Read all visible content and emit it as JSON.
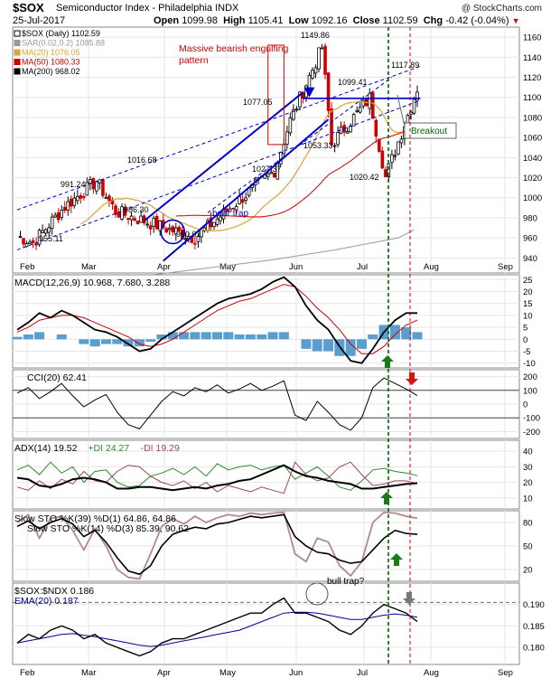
{
  "header": {
    "symbol": "$SOX",
    "name": "Semiconductor Index - Philadelphia",
    "exchange": "INDX",
    "date": "25-Jul-2017",
    "open_label": "Open",
    "open": "1099.98",
    "high_label": "High",
    "high": "1105.41",
    "low_label": "Low",
    "low": "1092.16",
    "close_label": "Close",
    "close": "1102.59",
    "chg_label": "Chg",
    "chg": "-0.42 (-0.04%)",
    "chg_arrow": "▼",
    "logo": "@ StockCharts.com"
  },
  "colors": {
    "up": "#000000",
    "down": "#cc0000",
    "trend": "#0000cc",
    "ma20": "#d9a43a",
    "ma50": "#cc0000",
    "ma200": "#999999",
    "green_line": "#006600",
    "red_line": "#cc0000",
    "grid": "#e6e6e6",
    "macd_hist": "#3c8dc5",
    "cci_fill_pos": "#5b7a4c",
    "cci_fill_neg": "#8a5a4e"
  },
  "price_panel": {
    "legend": [
      {
        "label": "$SOX (Daily) 1102.59",
        "color": "#000000"
      },
      {
        "label": "SAR(0.02,0.2) 1085.88",
        "color": "#999999"
      },
      {
        "label": "MA(20) 1076.05",
        "color": "#d9a43a"
      },
      {
        "label": "MA(50) 1080.33",
        "color": "#cc0000"
      },
      {
        "label": "MA(200) 968.02",
        "color": "#000000"
      }
    ],
    "annotations": [
      {
        "text": "Massive bearish engulfing",
        "color": "#cc0000"
      },
      {
        "text": "pattern",
        "color": "#cc0000"
      },
      {
        "text": "bear trap",
        "color": "#0000cc"
      },
      {
        "text": "Breakout",
        "color": "#006600"
      }
    ],
    "price_labels": [
      "1149.86",
      "1117.89",
      "1099.41",
      "1077.05",
      "1053.33",
      "1027.37",
      "1020.42",
      "1016.68",
      "991.24",
      "986.30",
      "955.11",
      "960.01"
    ]
  },
  "chart_data": [
    {
      "type": "candlestick",
      "title": "$SOX Semiconductor Index - Philadelphia INDX",
      "x_ticks": [
        "Feb",
        "Mar",
        "Apr",
        "May",
        "Jun",
        "Jul",
        "Aug",
        "Sep"
      ],
      "y_ticks": [
        940,
        960,
        980,
        1000,
        1020,
        1040,
        1060,
        1080,
        1100,
        1120,
        1140,
        1160
      ],
      "ylim": [
        925,
        1170
      ],
      "key_points": [
        {
          "date": "2017-01-31",
          "value": 955.11
        },
        {
          "date": "2017-02-14",
          "value": 991.24
        },
        {
          "date": "2017-02-28",
          "value": 1016.68
        },
        {
          "date": "2017-03-09",
          "value": 986.3
        },
        {
          "date": "2017-04-13",
          "value": 960.01
        },
        {
          "date": "2017-05-18",
          "value": 1027.37
        },
        {
          "date": "2017-05-24",
          "value": 1077.05
        },
        {
          "date": "2017-06-08",
          "value": 1149.86
        },
        {
          "date": "2017-06-12",
          "value": 1053.33
        },
        {
          "date": "2017-06-29",
          "value": 1099.41
        },
        {
          "date": "2017-07-06",
          "value": 1020.42
        },
        {
          "date": "2017-07-21",
          "value": 1117.89
        },
        {
          "date": "2017-07-25",
          "value": 1102.59
        }
      ],
      "ma200": [
        [
          0,
          908
        ],
        [
          40,
          922
        ],
        [
          80,
          938
        ],
        [
          100,
          948
        ],
        [
          120,
          960
        ],
        [
          125,
          968
        ]
      ]
    },
    {
      "type": "line",
      "title": "MACD(12,26,9) 10.968, 7.680, 3.288",
      "y_ticks": [
        25,
        20,
        15,
        10,
        5,
        0,
        -5,
        -10
      ],
      "ylim": [
        -12,
        27
      ],
      "series": [
        {
          "name": "MACD",
          "color": "#000000",
          "values": [
            4,
            7,
            11,
            9,
            12,
            10,
            7,
            4,
            3,
            1,
            -2,
            -5,
            -4,
            0,
            3,
            6,
            9,
            12,
            15,
            17,
            18,
            19,
            21,
            24,
            26,
            22,
            14,
            8,
            4,
            -3,
            -9,
            -10,
            -4,
            3,
            8,
            11,
            11
          ]
        },
        {
          "name": "Signal",
          "color": "#cc0000",
          "values": [
            3,
            5,
            8,
            9,
            10,
            10,
            9,
            7,
            5,
            3,
            1,
            -2,
            -3,
            -2,
            0,
            3,
            6,
            9,
            12,
            14,
            16,
            17,
            19,
            21,
            23,
            22,
            18,
            13,
            9,
            4,
            -2,
            -6,
            -6,
            -3,
            2,
            6,
            8
          ]
        },
        {
          "name": "Histogram",
          "color": "#3c8dc5",
          "values": [
            1,
            2,
            3,
            0,
            2,
            0,
            -2,
            -3,
            -2,
            -2,
            -3,
            -3,
            -1,
            2,
            3,
            3,
            3,
            3,
            3,
            3,
            2,
            2,
            2,
            3,
            3,
            0,
            -4,
            -5,
            -5,
            -7,
            -7,
            -4,
            2,
            6,
            6,
            5,
            3
          ]
        }
      ]
    },
    {
      "type": "line",
      "title": "CCI(20) 62.41",
      "y_ticks": [
        200,
        100,
        0,
        -100,
        -200
      ],
      "ylim": [
        -250,
        250
      ],
      "series": [
        {
          "name": "CCI",
          "color": "#000000",
          "values": [
            80,
            120,
            40,
            90,
            150,
            60,
            -20,
            30,
            70,
            -60,
            -150,
            -180,
            -80,
            20,
            90,
            60,
            120,
            90,
            140,
            80,
            110,
            150,
            100,
            130,
            170,
            -80,
            -120,
            20,
            -60,
            -150,
            -190,
            -100,
            120,
            190,
            150,
            110,
            62
          ]
        }
      ]
    },
    {
      "type": "line",
      "title": "ADX(14) 19.52 +DI 24.27 -DI 19.29",
      "y_ticks": [
        40,
        30,
        20,
        10
      ],
      "ylim": [
        3,
        47
      ],
      "series": [
        {
          "name": "ADX",
          "color": "#000000",
          "values": [
            23,
            22,
            18,
            17,
            19,
            22,
            23,
            22,
            20,
            16,
            16,
            17,
            17,
            16,
            15,
            16,
            17,
            16,
            18,
            19,
            21,
            22,
            25,
            28,
            31,
            27,
            24,
            23,
            21,
            20,
            19,
            16,
            16,
            17,
            18,
            19,
            19.5
          ]
        },
        {
          "name": "+DI",
          "color": "#2c8b2c",
          "values": [
            28,
            31,
            25,
            33,
            26,
            30,
            20,
            27,
            28,
            20,
            17,
            18,
            24,
            26,
            29,
            25,
            30,
            24,
            32,
            28,
            30,
            31,
            28,
            30,
            31,
            22,
            26,
            30,
            24,
            17,
            15,
            21,
            28,
            29,
            27,
            26,
            24.3
          ]
        },
        {
          "name": "-DI",
          "color": "#a0455a",
          "values": [
            17,
            15,
            21,
            16,
            22,
            19,
            27,
            21,
            20,
            27,
            31,
            30,
            24,
            20,
            18,
            21,
            16,
            20,
            14,
            18,
            16,
            14,
            17,
            15,
            13,
            33,
            25,
            21,
            23,
            30,
            33,
            25,
            18,
            19,
            21,
            21,
            19.3
          ]
        }
      ]
    },
    {
      "type": "line",
      "title": "Slow STO %K(39) %D(1) 64.86, 64.86",
      "y_ticks": [
        80,
        50,
        20
      ],
      "ylim": [
        5,
        95
      ],
      "series": [
        {
          "name": "Slow STO %K(39)",
          "color": "#000000",
          "values": [
            75,
            82,
            72,
            80,
            85,
            78,
            62,
            70,
            55,
            35,
            18,
            14,
            25,
            50,
            65,
            70,
            74,
            72,
            78,
            80,
            84,
            88,
            86,
            88,
            90,
            62,
            50,
            42,
            40,
            32,
            28,
            30,
            45,
            60,
            70,
            66,
            64.86
          ]
        },
        {
          "name": "Slow STO %K(14) %D(3)",
          "color": "#b08a8a",
          "values": [
            80,
            90,
            60,
            85,
            88,
            70,
            45,
            72,
            50,
            20,
            10,
            8,
            40,
            75,
            85,
            78,
            88,
            80,
            86,
            90,
            88,
            92,
            90,
            92,
            93,
            40,
            30,
            60,
            55,
            25,
            12,
            30,
            80,
            93,
            92,
            88,
            85.39
          ]
        }
      ]
    },
    {
      "type": "line",
      "title": "$SOX:$NDX 0.186",
      "y_ticks": [
        0.19,
        0.185,
        0.18
      ],
      "ylim": [
        0.176,
        0.195
      ],
      "series": [
        {
          "name": "$SOX:$NDX",
          "color": "#000000",
          "values": [
            0.181,
            0.183,
            0.182,
            0.184,
            0.185,
            0.184,
            0.182,
            0.183,
            0.181,
            0.18,
            0.179,
            0.178,
            0.179,
            0.181,
            0.182,
            0.182,
            0.183,
            0.184,
            0.185,
            0.186,
            0.187,
            0.188,
            0.188,
            0.19,
            0.1915,
            0.188,
            0.188,
            0.187,
            0.186,
            0.184,
            0.183,
            0.185,
            0.188,
            0.19,
            0.189,
            0.188,
            0.186
          ]
        },
        {
          "name": "EMA(20) 0.187",
          "color": "#000099",
          "values": [
            0.181,
            0.1815,
            0.182,
            0.1825,
            0.183,
            0.1832,
            0.1828,
            0.1825,
            0.182,
            0.1815,
            0.181,
            0.1805,
            0.1802,
            0.1805,
            0.181,
            0.1815,
            0.182,
            0.1825,
            0.183,
            0.1835,
            0.184,
            0.185,
            0.186,
            0.187,
            0.188,
            0.1882,
            0.1882,
            0.188,
            0.1875,
            0.187,
            0.1865,
            0.1865,
            0.187,
            0.1875,
            0.1878,
            0.1875,
            0.187
          ]
        }
      ]
    }
  ],
  "panels": [
    {
      "id": "macd",
      "label": "MACD(12,26,9) 10.968, 7.680, 3.288"
    },
    {
      "id": "cci",
      "label": "CCI(20) 62.41"
    },
    {
      "id": "adx",
      "label_parts": [
        {
          "t": "ADX(14) 19.52",
          "c": "#000000"
        },
        {
          "t": "+DI 24.27",
          "c": "#2c8b2c"
        },
        {
          "t": "-DI 19.29",
          "c": "#a0455a"
        }
      ]
    },
    {
      "id": "sto",
      "label1": "Slow STO %K(39) %D(1) 64.86, 64.86",
      "label2": "Slow STO %K(14) %D(3) 85.39, 90.62"
    },
    {
      "id": "ratio",
      "label1": "$SOX:$NDX 0.186",
      "label2": "EMA(20) 0.187",
      "annotation": "bull trap?"
    }
  ]
}
